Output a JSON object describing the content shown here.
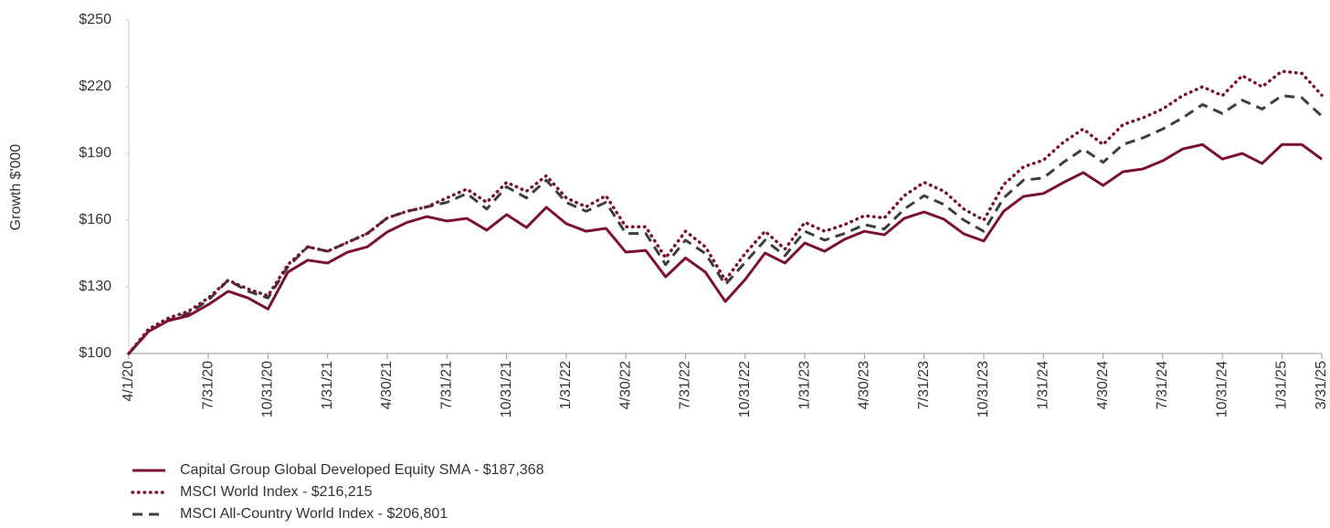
{
  "chart_data": {
    "type": "line",
    "y_label": "Growth $'000",
    "categories": [
      "4/1/20",
      null,
      null,
      null,
      "7/31/20",
      null,
      null,
      "10/31/20",
      null,
      null,
      "1/31/21",
      null,
      null,
      "4/30/21",
      null,
      null,
      "7/31/21",
      null,
      null,
      "10/31/21",
      null,
      null,
      "1/31/22",
      null,
      null,
      "4/30/22",
      null,
      null,
      "7/31/22",
      null,
      null,
      "10/31/22",
      null,
      null,
      "1/31/23",
      null,
      null,
      "4/30/23",
      null,
      null,
      "7/31/23",
      null,
      null,
      "10/31/23",
      null,
      null,
      "1/31/24",
      null,
      null,
      "4/30/24",
      null,
      null,
      "7/31/24",
      null,
      null,
      "10/31/24",
      null,
      null,
      "1/31/25",
      null,
      "3/31/25"
    ],
    "series": [
      {
        "name": "Capital Group Global Developed Equity SMA - $187,368",
        "color": "#7a1038",
        "style": "solid",
        "values": [
          100,
          110,
          114.8,
          117,
          122,
          128,
          125,
          120,
          136.6,
          142,
          140.7,
          145.6,
          148,
          154.7,
          159,
          161.6,
          159.6,
          160.8,
          155.5,
          162.5,
          156.7,
          165.8,
          158.4,
          155,
          156.3,
          145.6,
          146.4,
          134.5,
          143,
          136.6,
          123.4,
          133.3,
          145.2,
          140.7,
          149.7,
          146,
          151.4,
          155,
          153.4,
          160.8,
          163.7,
          160.4,
          153.8,
          150.6,
          164,
          170.7,
          172,
          176.9,
          181.4,
          175.6,
          181.8,
          183,
          186.7,
          192,
          194,
          187.5,
          190,
          185.5,
          194,
          194,
          187.4
        ]
      },
      {
        "name": "MSCI World Index - $216,215",
        "color": "#7a1038",
        "style": "dotted",
        "values": [
          100,
          111,
          116,
          119,
          125,
          133,
          129,
          126,
          140,
          148,
          146,
          150,
          154,
          161,
          164,
          166,
          170,
          174,
          168,
          177,
          173,
          180,
          170,
          166,
          171,
          157,
          157,
          143,
          155,
          148,
          133,
          145,
          155,
          147,
          159,
          155,
          158,
          162,
          161,
          171,
          177,
          173,
          165,
          160,
          176,
          184,
          187,
          195,
          201,
          194,
          203,
          206,
          210,
          216,
          220,
          216,
          225,
          220,
          227,
          226,
          216.2
        ]
      },
      {
        "name": "MSCI All-Country World Index - $206,801",
        "color": "#3d3d3d",
        "style": "dashed",
        "values": [
          100,
          110,
          115,
          118,
          124,
          133,
          128,
          125,
          139,
          148,
          146,
          150,
          154,
          161,
          164,
          166,
          168,
          172,
          165,
          175,
          170,
          178,
          168,
          164,
          168,
          154,
          154,
          140,
          151,
          145,
          131,
          141,
          151,
          144,
          155,
          151,
          154,
          158,
          156,
          165,
          171,
          167,
          160,
          155,
          170,
          178,
          179,
          186,
          192,
          186,
          194,
          197,
          201,
          206,
          212,
          208,
          214,
          210,
          216,
          215,
          206.8
        ]
      }
    ],
    "ylim": [
      100,
      250
    ],
    "yticks": [
      {
        "value": 100,
        "label": "$100"
      },
      {
        "value": 130,
        "label": "$130"
      },
      {
        "value": 160,
        "label": "$160"
      },
      {
        "value": 190,
        "label": "$190"
      },
      {
        "value": 220,
        "label": "$220"
      },
      {
        "value": 250,
        "label": "$250"
      }
    ],
    "grid": false
  }
}
